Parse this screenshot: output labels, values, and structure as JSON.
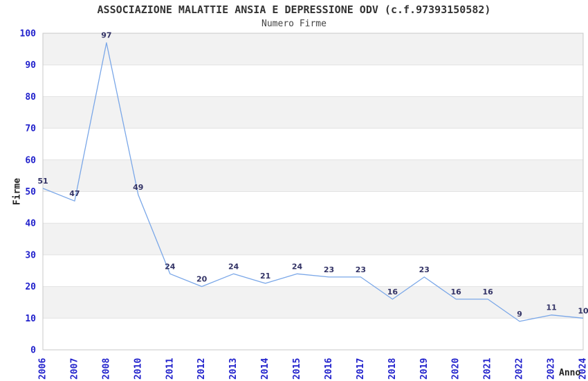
{
  "chart_data": {
    "type": "line",
    "title": "ASSOCIAZIONE MALATTIE ANSIA E DEPRESSIONE ODV (c.f.97393150582)",
    "subtitle": "Numero Firme",
    "xlabel": "Anno",
    "ylabel": "Firme",
    "categories": [
      "2006",
      "2007",
      "2008",
      "2010",
      "2011",
      "2012",
      "2013",
      "2014",
      "2015",
      "2016",
      "2017",
      "2018",
      "2019",
      "2020",
      "2021",
      "2022",
      "2023",
      "2024"
    ],
    "series": [
      {
        "name": "Numero Firme",
        "values": [
          51,
          47,
          97,
          49,
          24,
          20,
          24,
          21,
          24,
          23,
          23,
          16,
          23,
          16,
          16,
          9,
          11,
          10
        ]
      }
    ],
    "ylim": [
      0,
      100
    ],
    "ytick_step": 10,
    "yticks": [
      0,
      10,
      20,
      30,
      40,
      50,
      60,
      70,
      80,
      90,
      100
    ],
    "grid": "horizontal-bands",
    "legend_position": "none",
    "colors": {
      "line": "#7AA7E8",
      "data_label": "#333366",
      "tick_label": "#2222CC",
      "band_fill": "#F2F2F2",
      "grid_line": "#E2E2E2",
      "plot_border": "#C8C8C8",
      "title": "#333333",
      "subtitle": "#444444",
      "axis_title": "#222222",
      "background": "#FFFFFF"
    }
  }
}
